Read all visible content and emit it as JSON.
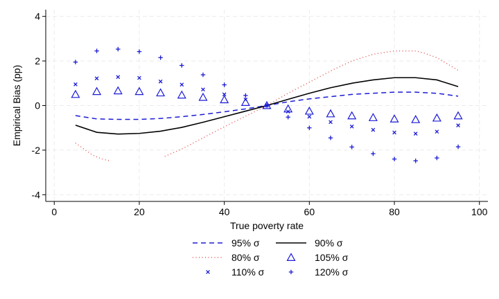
{
  "chart_data": {
    "type": "scatter",
    "xlabel": "True poverty rate",
    "ylabel": "Empirical Bias (pp)",
    "xlim": [
      -2,
      102
    ],
    "ylim": [
      -4.3,
      4.3
    ],
    "xticks": [
      0,
      20,
      40,
      60,
      80,
      100
    ],
    "yticks": [
      4,
      2,
      0,
      -2,
      -4
    ],
    "grid": true,
    "legend_placement": "bottom",
    "series": [
      {
        "name": "95% σ",
        "style": "dashed-line",
        "color": "#1a1ad6",
        "x": [
          5,
          10,
          15,
          20,
          25,
          30,
          35,
          40,
          45,
          50,
          55,
          60,
          65,
          70,
          75,
          80,
          85,
          90,
          95
        ],
        "y": [
          -0.45,
          -0.6,
          -0.62,
          -0.62,
          -0.58,
          -0.5,
          -0.4,
          -0.28,
          -0.15,
          0.0,
          0.17,
          0.3,
          0.4,
          0.5,
          0.55,
          0.6,
          0.6,
          0.55,
          0.42
        ]
      },
      {
        "name": "90% σ",
        "style": "solid-line",
        "color": "#000000",
        "x": [
          5,
          10,
          15,
          20,
          25,
          30,
          35,
          40,
          45,
          50,
          55,
          60,
          65,
          70,
          75,
          80,
          85,
          90,
          95
        ],
        "y": [
          -0.88,
          -1.2,
          -1.28,
          -1.25,
          -1.15,
          -0.98,
          -0.75,
          -0.5,
          -0.25,
          0.0,
          0.28,
          0.55,
          0.8,
          1.0,
          1.15,
          1.25,
          1.25,
          1.15,
          0.85
        ]
      },
      {
        "name": "80% σ",
        "style": "dotted-line",
        "color": "#e05555",
        "x": [
          5,
          7,
          9,
          11,
          13,
          26,
          30,
          35,
          40,
          45,
          50,
          55,
          60,
          65,
          70,
          75,
          80,
          85,
          87,
          90,
          95
        ],
        "y": [
          -1.68,
          -1.95,
          -2.22,
          -2.38,
          -2.48,
          -2.28,
          -1.95,
          -1.45,
          -0.95,
          -0.48,
          0.0,
          0.55,
          1.05,
          1.55,
          2.0,
          2.3,
          2.45,
          2.45,
          2.35,
          2.15,
          1.58
        ]
      },
      {
        "name": "105% σ",
        "style": "triangle",
        "color": "#1a1ad6",
        "x": [
          5,
          10,
          15,
          20,
          25,
          30,
          35,
          40,
          45,
          50,
          55,
          60,
          65,
          70,
          75,
          80,
          85,
          90,
          95
        ],
        "y": [
          0.5,
          0.63,
          0.66,
          0.63,
          0.57,
          0.47,
          0.37,
          0.26,
          0.14,
          0.0,
          -0.15,
          -0.25,
          -0.37,
          -0.46,
          -0.54,
          -0.6,
          -0.63,
          -0.56,
          -0.46
        ]
      },
      {
        "name": "110% σ",
        "style": "x-mark",
        "color": "#1a1ad6",
        "x": [
          5,
          10,
          15,
          20,
          25,
          30,
          35,
          40,
          45,
          50,
          55,
          60,
          65,
          70,
          75,
          80,
          85,
          90,
          95
        ],
        "y": [
          0.95,
          1.22,
          1.28,
          1.24,
          1.08,
          0.94,
          0.72,
          0.5,
          0.27,
          0.0,
          -0.27,
          -0.5,
          -0.74,
          -0.94,
          -1.09,
          -1.21,
          -1.26,
          -1.17,
          -0.89
        ]
      },
      {
        "name": "120% σ",
        "style": "plus-mark",
        "color": "#1a1ad6",
        "x": [
          5,
          10,
          15,
          20,
          25,
          30,
          35,
          40,
          45,
          50,
          55,
          60,
          65,
          70,
          75,
          80,
          85,
          90,
          95
        ],
        "y": [
          1.95,
          2.45,
          2.53,
          2.42,
          2.15,
          1.8,
          1.38,
          0.93,
          0.45,
          0.0,
          -0.52,
          -1.0,
          -1.45,
          -1.86,
          -2.16,
          -2.4,
          -2.48,
          -2.35,
          -1.85
        ]
      }
    ]
  }
}
